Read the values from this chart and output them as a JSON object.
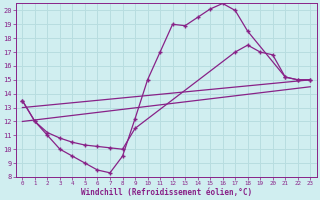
{
  "xlabel": "Windchill (Refroidissement éolien,°C)",
  "xlim": [
    -0.5,
    23.5
  ],
  "ylim": [
    8,
    20.5
  ],
  "xticks": [
    0,
    1,
    2,
    3,
    4,
    5,
    6,
    7,
    8,
    9,
    10,
    11,
    12,
    13,
    14,
    15,
    16,
    17,
    18,
    19,
    20,
    21,
    22,
    23
  ],
  "yticks": [
    8,
    9,
    10,
    11,
    12,
    13,
    14,
    15,
    16,
    17,
    18,
    19,
    20
  ],
  "bg_color": "#d0eef0",
  "line_color": "#882288",
  "grid_color": "#b8dde0",
  "line1_x": [
    0,
    1,
    2,
    3,
    4,
    5,
    6,
    7,
    8,
    9,
    10,
    11,
    12,
    13,
    14,
    15,
    16,
    17,
    18,
    21,
    22,
    23
  ],
  "line1_y": [
    13.5,
    12.0,
    11.0,
    10.0,
    9.5,
    9.0,
    8.5,
    8.3,
    9.5,
    12.2,
    15.0,
    17.0,
    19.0,
    18.9,
    19.5,
    20.1,
    20.5,
    20.0,
    18.5,
    15.2,
    15.0,
    15.0
  ],
  "line2_x": [
    0,
    1,
    2,
    3,
    4,
    5,
    6,
    7,
    8,
    9,
    17,
    18,
    19,
    20,
    21,
    22,
    23
  ],
  "line2_y": [
    13.5,
    12.0,
    11.2,
    10.8,
    10.5,
    10.3,
    10.2,
    10.1,
    10.0,
    11.5,
    17.0,
    17.5,
    17.0,
    16.8,
    15.2,
    15.0,
    15.0
  ],
  "line3_x": [
    0,
    23
  ],
  "line3_y": [
    13.0,
    15.0
  ],
  "line4_x": [
    0,
    23
  ],
  "line4_y": [
    12.0,
    14.5
  ]
}
